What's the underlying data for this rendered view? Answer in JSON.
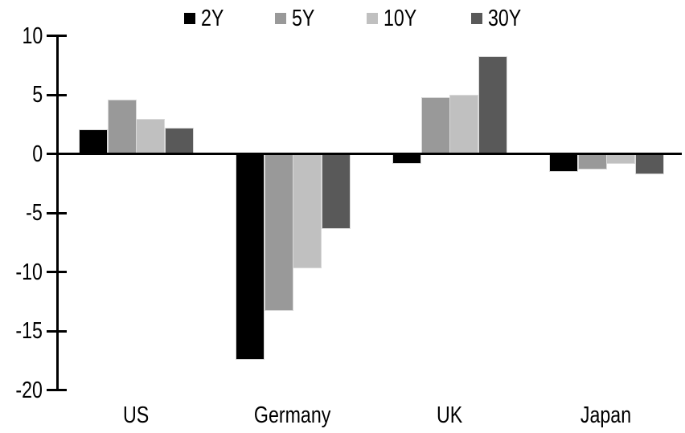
{
  "chart_data": {
    "type": "bar",
    "title": "",
    "categories": [
      "US",
      "Germany",
      "UK",
      "Japan"
    ],
    "series": [
      {
        "name": "2Y",
        "color": "#000000",
        "values": [
          2.1,
          -17.4,
          -0.8,
          -1.5
        ]
      },
      {
        "name": "5Y",
        "color": "#999999",
        "values": [
          4.6,
          -13.3,
          4.8,
          -1.3
        ]
      },
      {
        "name": "10Y",
        "color": "#c0c0c0",
        "values": [
          3.0,
          -9.7,
          5.0,
          -0.8
        ]
      },
      {
        "name": "30Y",
        "color": "#595959",
        "values": [
          2.2,
          -6.3,
          8.3,
          -1.7
        ]
      }
    ],
    "ylim": [
      -20,
      10
    ],
    "yticks": [
      10,
      5,
      0,
      -5,
      -10,
      -15,
      -20
    ],
    "xlabel": "",
    "ylabel": "",
    "grid": false,
    "legend_position": "top",
    "axis_color": "#000000",
    "background_color": "#ffffff"
  }
}
